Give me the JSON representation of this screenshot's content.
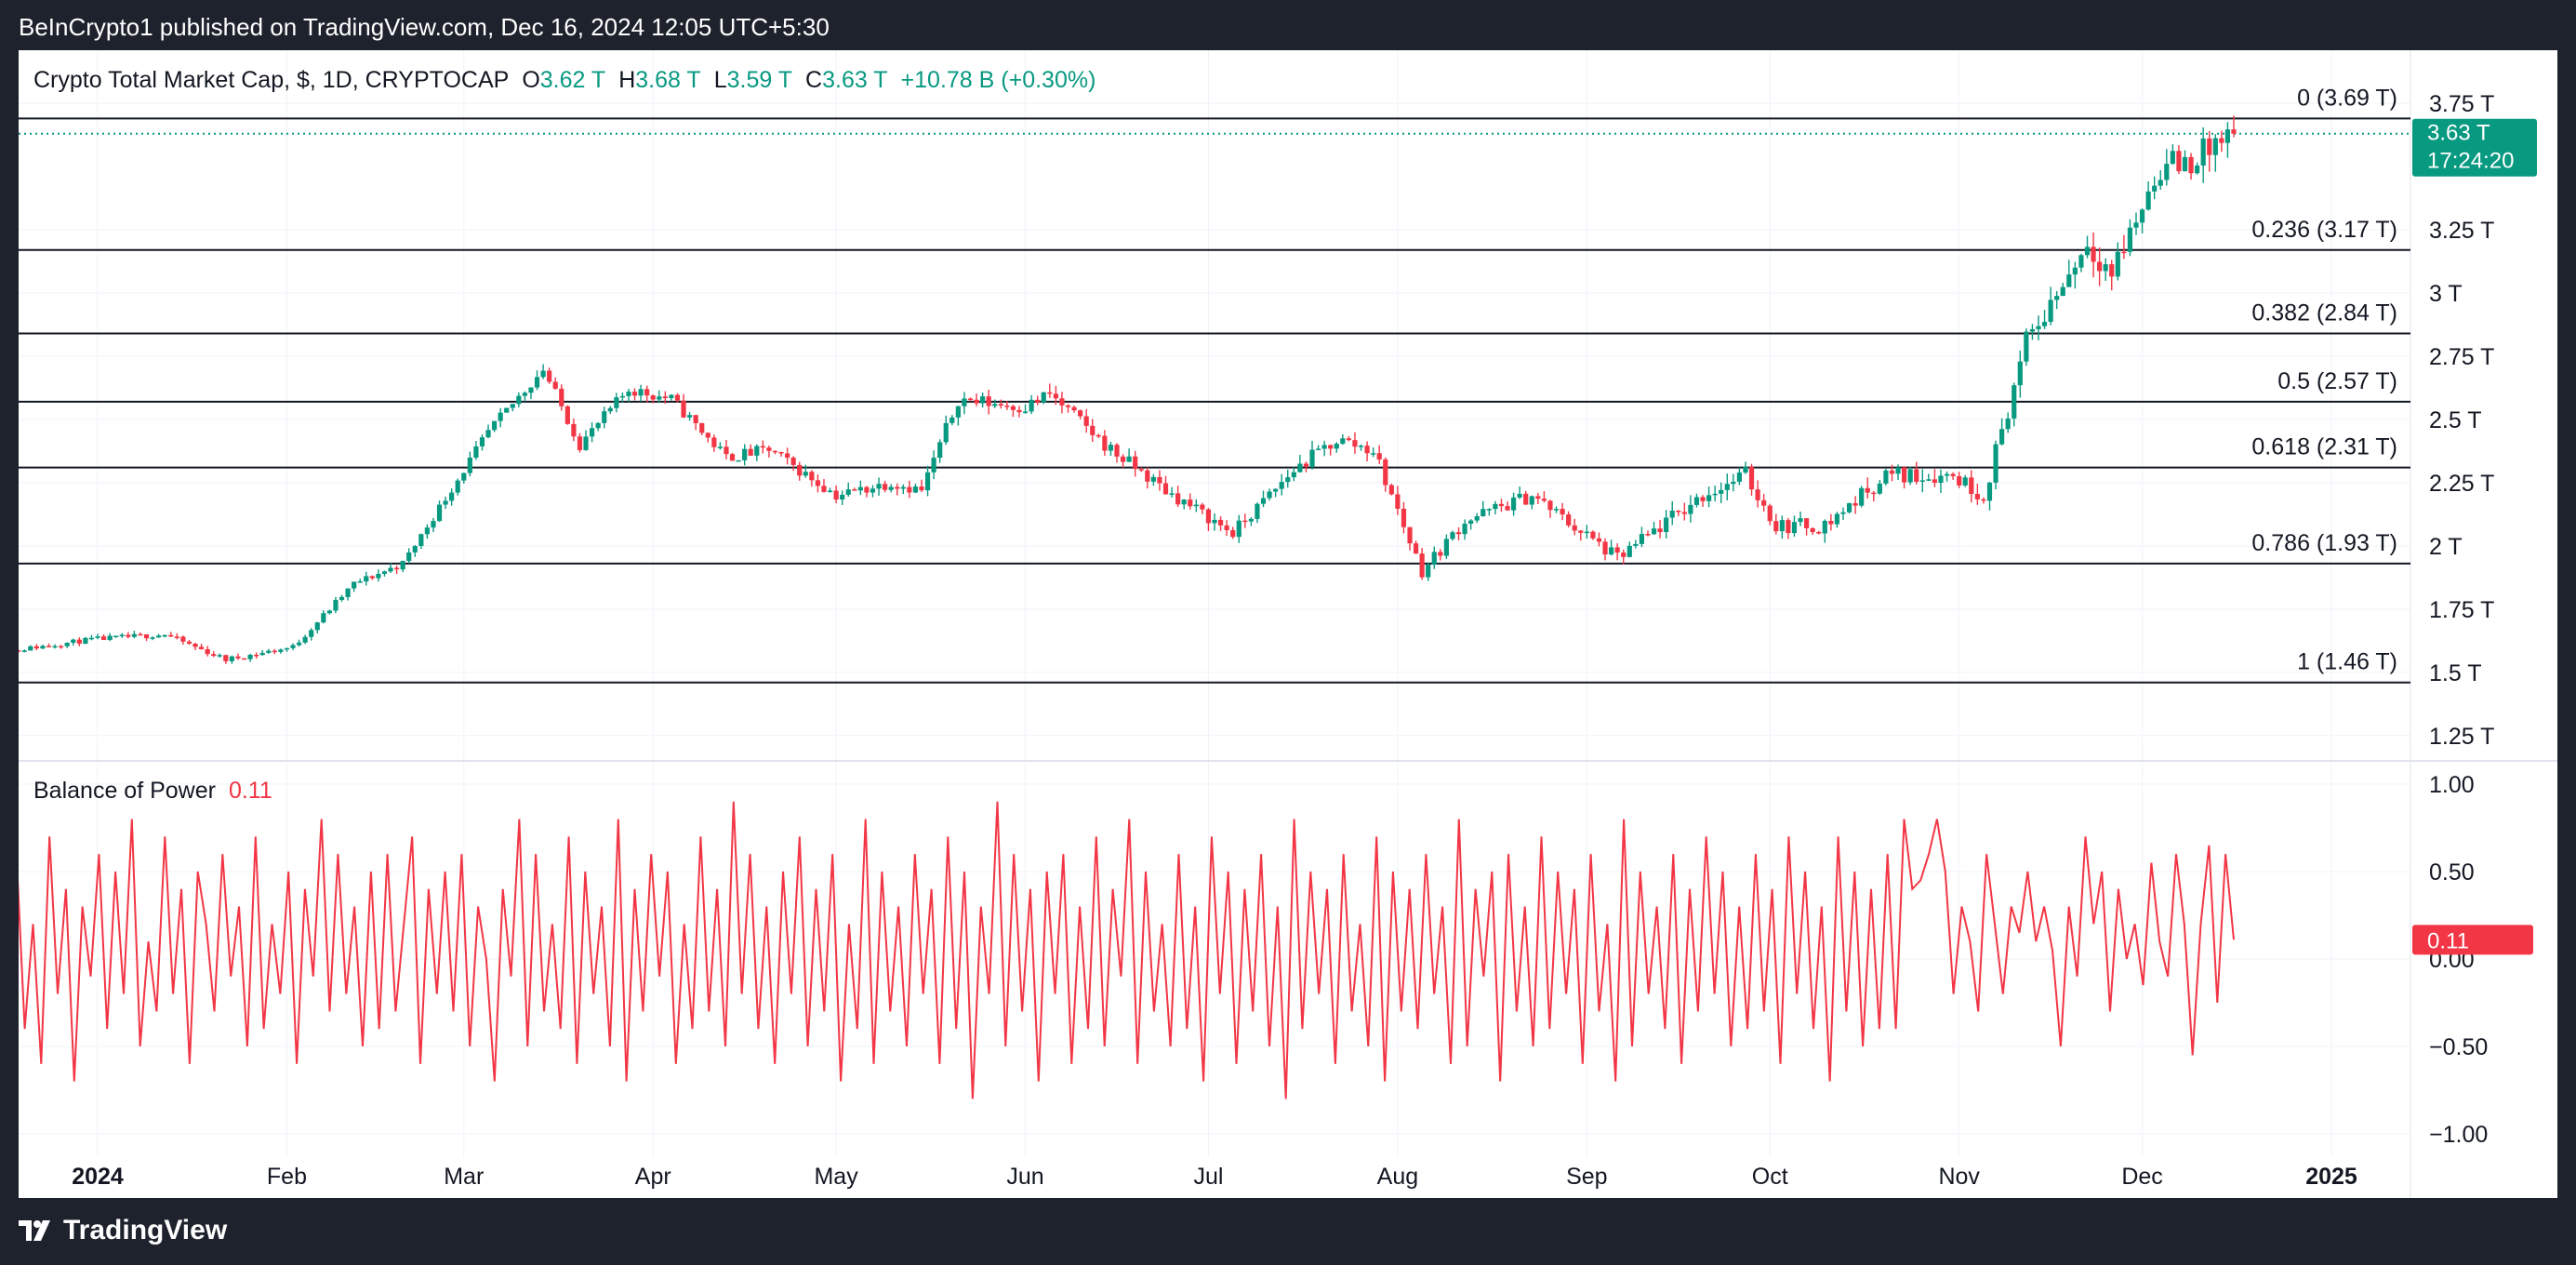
{
  "header": {
    "published": "BeInCrypto1 published on TradingView.com, Dec 16, 2024 12:05 UTC+5:30"
  },
  "footer": {
    "brand": "TradingView"
  },
  "legend": {
    "symbol": "Crypto Total Market Cap, $, 1D, CRYPTOCAP",
    "o_label": "O",
    "o_value": "3.62 T",
    "h_label": "H",
    "h_value": "3.68 T",
    "l_label": "L",
    "l_value": "3.59 T",
    "c_label": "C",
    "c_value": "3.63 T",
    "change": "+10.78 B (+0.30%)"
  },
  "price_tag": {
    "value": "3.63 T",
    "countdown": "17:24:20"
  },
  "bop_legend": {
    "label": "Balance of Power",
    "value": "0.11"
  },
  "bop_tag": "0.11",
  "colors": {
    "up": "#089981",
    "down": "#f23645",
    "bop_line": "#f23645",
    "bg": "#1e222d"
  },
  "chart_data": [
    {
      "type": "candlestick",
      "title": "Crypto Total Market Cap, $, 1D, CRYPTOCAP",
      "x_ticks": [
        "2024",
        "Feb",
        "Mar",
        "Apr",
        "May",
        "Jun",
        "Jul",
        "Aug",
        "Sep",
        "Oct",
        "Nov",
        "Dec",
        "2025"
      ],
      "y_ticks": [
        "3.75 T",
        "3.25 T",
        "3 T",
        "2.75 T",
        "2.5 T",
        "2.25 T",
        "2 T",
        "1.75 T",
        "1.5 T",
        "1.25 T"
      ],
      "ylim": [
        1.15,
        3.96
      ],
      "last_close": 3.63,
      "fibonacci": [
        {
          "level": 0,
          "value": 3.69,
          "label": "0 (3.69 T)"
        },
        {
          "level": 0.236,
          "value": 3.17,
          "label": "0.236 (3.17 T)"
        },
        {
          "level": 0.382,
          "value": 2.84,
          "label": "0.382 (2.84 T)"
        },
        {
          "level": 0.5,
          "value": 2.57,
          "label": "0.5 (2.57 T)"
        },
        {
          "level": 0.618,
          "value": 2.31,
          "label": "0.618 (2.31 T)"
        },
        {
          "level": 0.786,
          "value": 1.93,
          "label": "0.786 (1.93 T)"
        },
        {
          "level": 1,
          "value": 1.46,
          "label": "1 (1.46 T)"
        }
      ],
      "close_path": [
        [
          "2023-12-16",
          1.58
        ],
        [
          "2023-12-31",
          1.63
        ],
        [
          "2024-01-12",
          1.65
        ],
        [
          "2024-01-22",
          1.55
        ],
        [
          "2024-02-02",
          1.6
        ],
        [
          "2024-02-12",
          1.85
        ],
        [
          "2024-02-20",
          1.93
        ],
        [
          "2024-03-01",
          2.3
        ],
        [
          "2024-03-05",
          2.45
        ],
        [
          "2024-03-14",
          2.7
        ],
        [
          "2024-03-20",
          2.4
        ],
        [
          "2024-03-28",
          2.62
        ],
        [
          "2024-04-04",
          2.58
        ],
        [
          "2024-04-13",
          2.35
        ],
        [
          "2024-04-20",
          2.38
        ],
        [
          "2024-05-01",
          2.2
        ],
        [
          "2024-05-10",
          2.25
        ],
        [
          "2024-05-15",
          2.22
        ],
        [
          "2024-05-21",
          2.58
        ],
        [
          "2024-06-01",
          2.55
        ],
        [
          "2024-06-05",
          2.6
        ],
        [
          "2024-06-15",
          2.38
        ],
        [
          "2024-06-24",
          2.22
        ],
        [
          "2024-07-05",
          2.05
        ],
        [
          "2024-07-15",
          2.3
        ],
        [
          "2024-07-22",
          2.42
        ],
        [
          "2024-07-28",
          2.38
        ],
        [
          "2024-08-05",
          1.9
        ],
        [
          "2024-08-12",
          2.1
        ],
        [
          "2024-08-23",
          2.2
        ],
        [
          "2024-09-06",
          1.95
        ],
        [
          "2024-09-20",
          2.2
        ],
        [
          "2024-09-27",
          2.28
        ],
        [
          "2024-10-02",
          2.08
        ],
        [
          "2024-10-10",
          2.08
        ],
        [
          "2024-10-20",
          2.28
        ],
        [
          "2024-10-31",
          2.28
        ],
        [
          "2024-11-05",
          2.2
        ],
        [
          "2024-11-12",
          2.8
        ],
        [
          "2024-11-22",
          3.2
        ],
        [
          "2024-11-26",
          3.08
        ],
        [
          "2024-12-04",
          3.5
        ],
        [
          "2024-12-09",
          3.52
        ],
        [
          "2024-12-16",
          3.63
        ]
      ]
    },
    {
      "type": "line",
      "title": "Balance of Power",
      "y_ticks": [
        "1.00",
        "0.50",
        "0.00",
        "−0.50",
        "−1.00"
      ],
      "ylim": [
        -1.0,
        1.0
      ],
      "last_value": 0.11,
      "x_start": "2023-12-16",
      "x_end": "2024-12-16",
      "values": [
        0.5,
        -0.3,
        0.6,
        -0.4,
        0.2,
        -0.6,
        0.7,
        -0.2,
        0.4,
        -0.7,
        0.3,
        -0.1,
        0.6,
        -0.4,
        0.5,
        -0.2,
        0.8,
        -0.5,
        0.1,
        -0.3,
        0.7,
        -0.2,
        0.4,
        -0.6,
        0.5,
        0.2,
        -0.3,
        0.6,
        -0.1,
        0.3,
        -0.5,
        0.7,
        -0.4,
        0.2,
        -0.2,
        0.5,
        -0.6,
        0.4,
        -0.1,
        0.8,
        -0.3,
        0.6,
        -0.2,
        0.3,
        -0.5,
        0.5,
        -0.4,
        0.6,
        -0.3,
        0.2,
        0.7,
        -0.6,
        0.4,
        -0.2,
        0.5,
        -0.3,
        0.6,
        -0.5,
        0.3,
        0.0,
        -0.7,
        0.4,
        -0.1,
        0.8,
        -0.5,
        0.6,
        -0.3,
        0.2,
        -0.4,
        0.7,
        -0.6,
        0.5,
        -0.2,
        0.3,
        -0.5,
        0.8,
        -0.7,
        0.4,
        -0.3,
        0.6,
        -0.1,
        0.5,
        -0.6,
        0.2,
        -0.4,
        0.7,
        -0.3,
        0.4,
        -0.5,
        0.9,
        -0.2,
        0.6,
        -0.4,
        0.3,
        -0.6,
        0.5,
        -0.2,
        0.7,
        -0.5,
        0.4,
        -0.3,
        0.6,
        -0.7,
        0.2,
        -0.4,
        0.8,
        -0.6,
        0.5,
        -0.3,
        0.3,
        -0.5,
        0.6,
        -0.2,
        0.4,
        -0.6,
        0.7,
        -0.4,
        0.5,
        -0.8,
        0.3,
        -0.2,
        0.9,
        -0.5,
        0.6,
        -0.3,
        0.4,
        -0.7,
        0.5,
        -0.2,
        0.6,
        -0.6,
        0.3,
        -0.4,
        0.7,
        -0.5,
        0.4,
        -0.1,
        0.8,
        -0.6,
        0.5,
        -0.3,
        0.2,
        -0.5,
        0.6,
        -0.4,
        0.3,
        -0.7,
        0.7,
        -0.2,
        0.5,
        -0.6,
        0.4,
        -0.3,
        0.6,
        -0.5,
        0.3,
        -0.8,
        0.8,
        -0.4,
        0.5,
        -0.2,
        0.4,
        -0.6,
        0.6,
        -0.3,
        0.2,
        -0.5,
        0.7,
        -0.7,
        0.5,
        -0.3,
        0.4,
        -0.4,
        0.6,
        -0.2,
        0.3,
        -0.6,
        0.8,
        -0.5,
        0.4,
        -0.1,
        0.5,
        -0.7,
        0.6,
        -0.3,
        0.3,
        -0.5,
        0.7,
        -0.4,
        0.5,
        -0.2,
        0.4,
        -0.6,
        0.6,
        -0.3,
        0.2,
        -0.7,
        0.8,
        -0.5,
        0.5,
        -0.2,
        0.3,
        -0.4,
        0.6,
        -0.6,
        0.4,
        -0.3,
        0.7,
        -0.2,
        0.5,
        -0.5,
        0.3,
        -0.4,
        0.6,
        -0.3,
        0.4,
        -0.6,
        0.7,
        -0.2,
        0.5,
        -0.4,
        0.3,
        -0.7,
        0.7,
        -0.3,
        0.5,
        -0.5,
        0.4,
        -0.4,
        0.6,
        -0.4,
        0.8,
        0.4,
        0.45,
        0.6,
        0.8,
        0.5,
        -0.2,
        0.3,
        0.1,
        -0.3,
        0.6,
        0.2,
        -0.2,
        0.3,
        0.15,
        0.5,
        0.1,
        0.3,
        0.05,
        -0.5,
        0.3,
        -0.1,
        0.7,
        0.2,
        0.5,
        -0.3,
        0.4,
        0.0,
        0.2,
        -0.15,
        0.55,
        0.1,
        -0.1,
        0.6,
        0.2,
        -0.55,
        0.2,
        0.65,
        -0.25,
        0.6,
        0.11
      ]
    }
  ]
}
